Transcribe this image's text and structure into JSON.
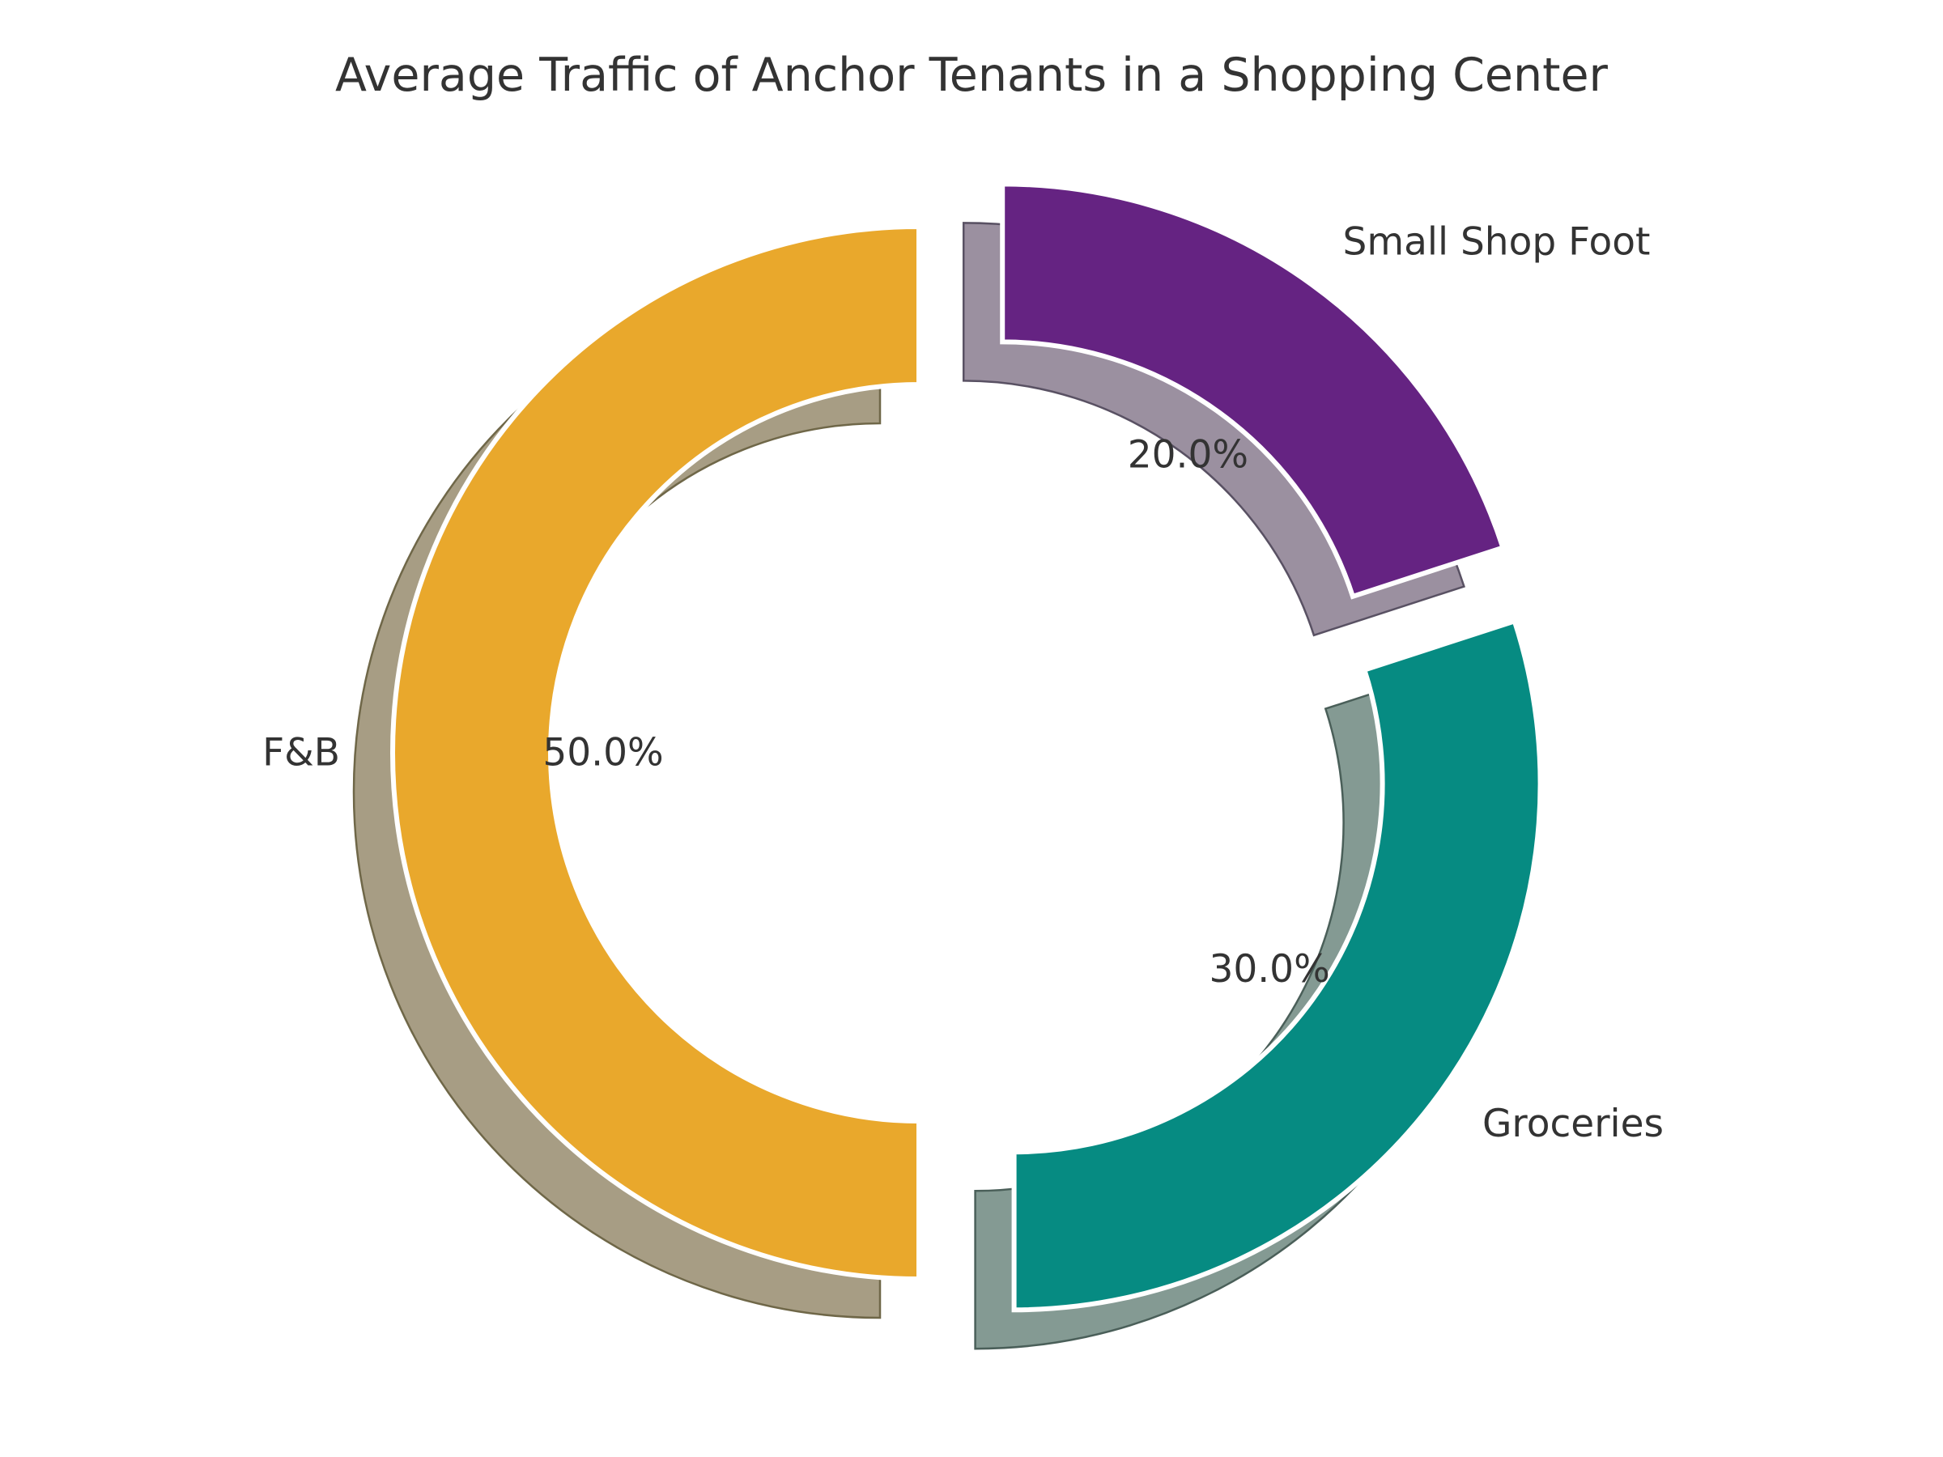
{
  "title": "Average Traffic of Anchor Tenants in a Shopping Center",
  "chart_data": {
    "type": "pie",
    "subtype": "donut-exploded-shadow",
    "title": "Average Traffic of Anchor Tenants in a Shopping Center",
    "categories": [
      "F&B",
      "Groceries",
      "Small Shop Foot"
    ],
    "values": [
      50.0,
      30.0,
      20.0
    ],
    "pct_labels": [
      "50.0%",
      "30.0%",
      "20.0%"
    ],
    "start_angle": 90,
    "counterclockwise": true,
    "explode": [
      0.1,
      0.1,
      0.1
    ],
    "donut_width_fraction": 0.3,
    "pct_distance": 0.6,
    "label_distance": 1.1,
    "shadow": true,
    "legend": false,
    "colors": [
      "#E9A82C",
      "#068B82",
      "#652382"
    ],
    "shadow_colors": [
      "#A79D84",
      "#849A93",
      "#9B90A0"
    ],
    "shadow_edge_colors": [
      "#6F6748",
      "#4A5F59",
      "#595163"
    ],
    "wedge_edge_color": "#FFFFFF",
    "text_color": "#333333",
    "background_color": "#FFFFFF"
  }
}
